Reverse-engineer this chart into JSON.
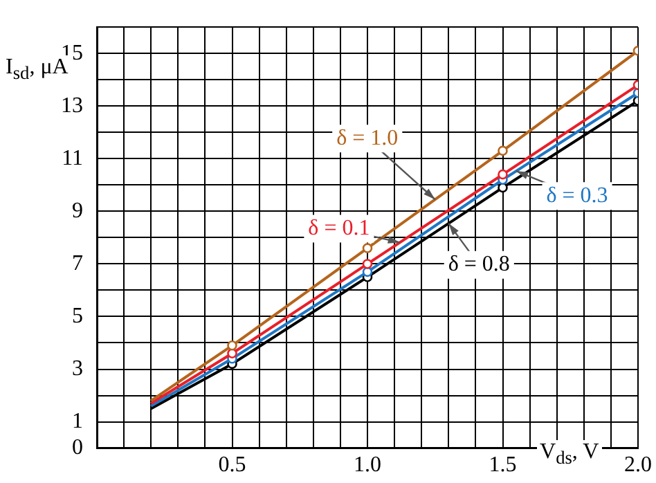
{
  "chart_data": {
    "type": "line",
    "xlabel": "V$_{ds}$, V",
    "ylabel": "I$_{sd}$, μA",
    "x": [
      0.2,
      0.5,
      1.0,
      1.5,
      2.0
    ],
    "series": [
      {
        "name": "δ = 1.0",
        "color": "#b5651d",
        "values": [
          1.8,
          3.9,
          7.6,
          11.3,
          15.1
        ]
      },
      {
        "name": "δ = 0.1",
        "color": "#e8202a",
        "values": [
          1.7,
          3.6,
          7.0,
          10.4,
          13.8
        ]
      },
      {
        "name": "δ = 0.3",
        "color": "#1f77c4",
        "values": [
          1.6,
          3.4,
          6.7,
          10.2,
          13.5
        ]
      },
      {
        "name": "δ = 0.8",
        "color": "#000000",
        "values": [
          1.5,
          3.2,
          6.5,
          9.9,
          13.2
        ]
      }
    ],
    "xlim": [
      0,
      2.0
    ],
    "xticks": [
      {
        "value": 0,
        "label": null
      },
      {
        "value": 0.1,
        "label": null
      },
      {
        "value": 0.2,
        "label": null
      },
      {
        "value": 0.3,
        "label": null
      },
      {
        "value": 0.4,
        "label": null
      },
      0.5,
      {
        "value": 0.6,
        "label": null
      },
      {
        "value": 0.7,
        "label": null
      },
      {
        "value": 0.8,
        "label": null
      },
      {
        "value": 0.9,
        "label": null
      },
      {
        "value": 1.0,
        "label": "1.0"
      },
      {
        "value": 1.1,
        "label": null
      },
      {
        "value": 1.2,
        "label": null
      },
      {
        "value": 1.3,
        "label": null
      },
      {
        "value": 1.4,
        "label": null
      },
      1.5,
      {
        "value": 1.6,
        "label": null
      },
      {
        "value": 1.7,
        "label": null
      },
      {
        "value": 1.8,
        "label": null
      },
      {
        "value": 1.9,
        "label": null
      },
      {
        "value": 2.0,
        "label": "2.0"
      }
    ],
    "ylim": [
      0,
      16
    ],
    "yticks": [
      0,
      1,
      {
        "value": 2,
        "label": null
      },
      3,
      {
        "value": 4,
        "label": null
      },
      5,
      {
        "value": 6,
        "label": null
      },
      7,
      {
        "value": 8,
        "label": null
      },
      9,
      {
        "value": 10,
        "label": null
      },
      11,
      {
        "value": 12,
        "label": null
      },
      13,
      {
        "value": 14,
        "label": null
      },
      15,
      {
        "value": 16,
        "label": null
      }
    ],
    "grid": true,
    "legend": false,
    "marker": "circle",
    "line_style": "solid"
  }
}
